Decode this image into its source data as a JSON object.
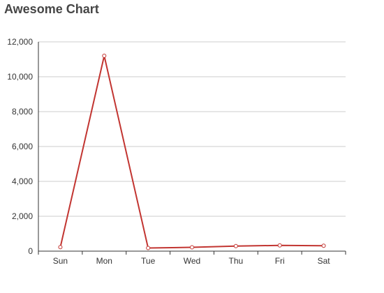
{
  "chart_data": {
    "type": "line",
    "title": "Awesome Chart",
    "categories": [
      "Sun",
      "Mon",
      "Tue",
      "Wed",
      "Thu",
      "Fri",
      "Sat"
    ],
    "series": [
      {
        "values": [
          230,
          11200,
          180,
          220,
          290,
          330,
          310
        ]
      }
    ],
    "y_ticks": [
      "0",
      "2,000",
      "4,000",
      "6,000",
      "8,000",
      "10,000",
      "12,000"
    ],
    "ylim": [
      0,
      12000
    ],
    "grid": "horizontal",
    "line_color": "#c23531",
    "marker_fill": "#ffffff"
  }
}
